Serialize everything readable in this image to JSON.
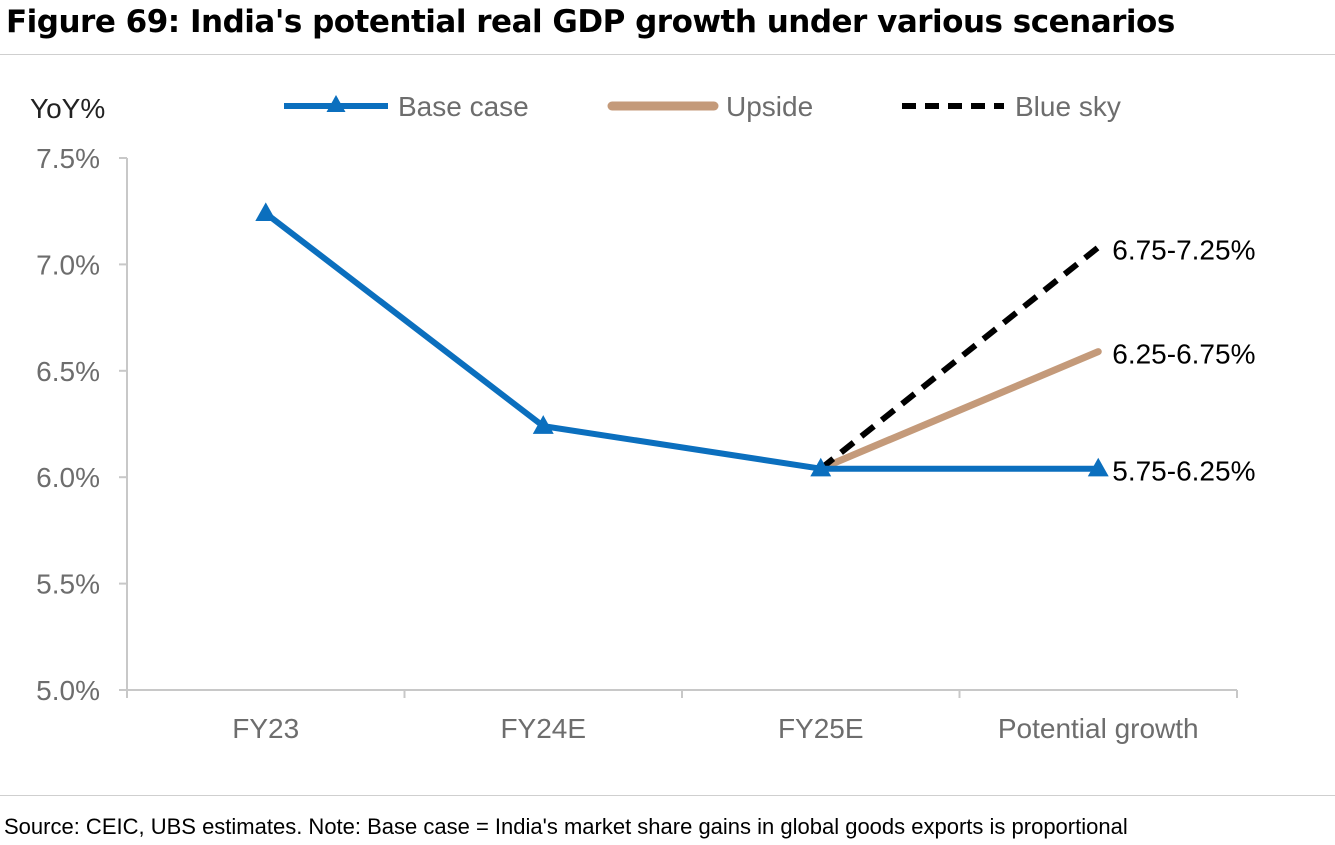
{
  "title": "Figure 69: India's potential real GDP growth under various scenarios",
  "source": "Source: CEIC, UBS estimates. Note: Base case = India's market share gains in global goods exports is proportional",
  "chart_data": {
    "type": "line",
    "ylabel": "YoY%",
    "ylim": [
      5.0,
      7.5
    ],
    "yticks": [
      "5.0%",
      "5.5%",
      "6.0%",
      "6.5%",
      "7.0%",
      "7.5%"
    ],
    "ytick_values": [
      5.0,
      5.5,
      6.0,
      6.5,
      7.0,
      7.5
    ],
    "categories": [
      "FY23",
      "FY24E",
      "FY25E",
      "Potential growth"
    ],
    "legend_position": "top",
    "grid": false,
    "series": [
      {
        "name": "Base case",
        "color": "#0b6fbe",
        "style": "solid-triangle-markers",
        "values": [
          7.24,
          6.24,
          6.04,
          6.04
        ],
        "end_label": "5.75-6.25%"
      },
      {
        "name": "Upside",
        "color": "#c49a7a",
        "style": "solid",
        "values": [
          null,
          null,
          6.04,
          6.59
        ],
        "end_label": "6.25-6.75%"
      },
      {
        "name": "Blue sky",
        "color": "#000000",
        "style": "dashed",
        "values": [
          null,
          null,
          6.04,
          7.08
        ],
        "end_label": "6.75-7.25%"
      }
    ]
  }
}
